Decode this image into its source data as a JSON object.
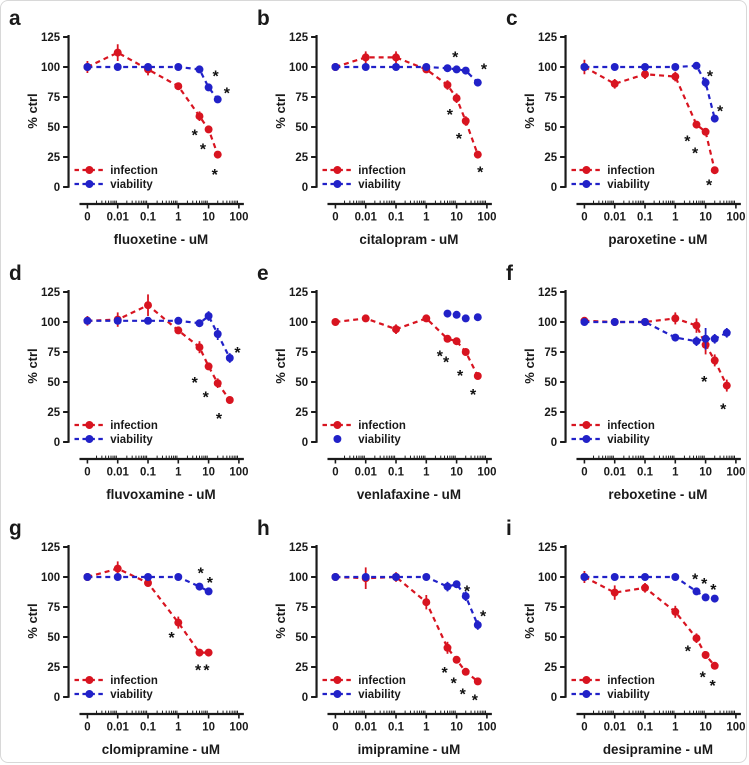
{
  "figure": {
    "type": "dose-response-grid",
    "rows": 3,
    "cols": 3,
    "ylabel": "% ctrl",
    "legend_labels": [
      "infection",
      "viability"
    ]
  },
  "style": {
    "red": "#d81420",
    "blue": "#2121c8",
    "axis": "#1a1a1a",
    "text": "#1a1a1a",
    "sig": "#111111",
    "background": "#ffffff",
    "border": "#d8d8d8"
  },
  "chart_data": [
    {
      "panel_letter": "a",
      "type": "line",
      "xlabel": "fluoxetine - uM",
      "ylabel": "% ctrl",
      "x": [
        0,
        0.01,
        0.1,
        1,
        5,
        10,
        20
      ],
      "xticklabels": [
        "0",
        "0.01",
        "0.1",
        "1",
        "10",
        "100"
      ],
      "yticks": [
        0,
        25,
        50,
        75,
        100,
        125
      ],
      "ylim": [
        0,
        125
      ],
      "xscale": "log",
      "series": [
        {
          "name": "infection",
          "color_key": "red",
          "dashed": true,
          "values": [
            100,
            112,
            98,
            84,
            59,
            48,
            27
          ],
          "err": [
            5,
            7,
            5,
            3,
            4,
            3,
            3
          ]
        },
        {
          "name": "viability",
          "color_key": "blue",
          "dashed": true,
          "values": [
            100,
            100,
            100,
            100,
            98,
            83,
            73
          ],
          "err": [
            0,
            0,
            0,
            0,
            2,
            3,
            3
          ]
        }
      ],
      "sig": {
        "infection": [
          [
            3.5,
            46
          ],
          [
            6.5,
            34
          ],
          [
            16,
            13
          ]
        ],
        "viability": [
          [
            17,
            95
          ],
          [
            40,
            81
          ]
        ]
      }
    },
    {
      "panel_letter": "b",
      "type": "line",
      "xlabel": "citalopram - uM",
      "ylabel": "% ctrl",
      "x": [
        0,
        0.01,
        0.1,
        1,
        5,
        10,
        20,
        50
      ],
      "xticklabels": [
        "0",
        "0.01",
        "0.1",
        "1",
        "10",
        "100"
      ],
      "yticks": [
        0,
        25,
        50,
        75,
        100,
        125
      ],
      "ylim": [
        0,
        125
      ],
      "xscale": "log",
      "series": [
        {
          "name": "infection",
          "color_key": "red",
          "dashed": true,
          "values": [
            100,
            108,
            108,
            98,
            85,
            74,
            55,
            27
          ],
          "err": [
            3,
            5,
            5,
            3,
            4,
            4,
            4,
            3
          ]
        },
        {
          "name": "viability",
          "color_key": "blue",
          "dashed": true,
          "values": [
            100,
            100,
            100,
            100,
            99,
            98,
            97,
            87
          ],
          "err": [
            0,
            0,
            0,
            0,
            0,
            2,
            2,
            3
          ]
        }
      ],
      "sig": {
        "infection": [
          [
            6,
            63
          ],
          [
            12,
            43
          ],
          [
            60,
            15
          ]
        ],
        "viability": [
          [
            9,
            111
          ],
          [
            80,
            101
          ]
        ]
      }
    },
    {
      "panel_letter": "c",
      "type": "line",
      "xlabel": "paroxetine - uM",
      "ylabel": "% ctrl",
      "x": [
        0,
        0.01,
        0.1,
        1,
        5,
        10,
        20
      ],
      "xticklabels": [
        "0",
        "0.01",
        "0.1",
        "1",
        "10",
        "100"
      ],
      "yticks": [
        0,
        25,
        50,
        75,
        100,
        125
      ],
      "ylim": [
        0,
        125
      ],
      "xscale": "log",
      "series": [
        {
          "name": "infection",
          "color_key": "red",
          "dashed": true,
          "values": [
            100,
            86,
            94,
            92,
            52,
            46,
            14
          ],
          "err": [
            6,
            4,
            4,
            4,
            3,
            3,
            3
          ]
        },
        {
          "name": "viability",
          "color_key": "blue",
          "dashed": true,
          "values": [
            100,
            100,
            100,
            100,
            101,
            87,
            57
          ],
          "err": [
            2,
            0,
            0,
            0,
            3,
            4,
            3
          ]
        }
      ],
      "sig": {
        "infection": [
          [
            2.5,
            41
          ],
          [
            4.5,
            31
          ],
          [
            13,
            4
          ]
        ],
        "viability": [
          [
            14,
            95
          ],
          [
            30,
            66
          ]
        ]
      }
    },
    {
      "panel_letter": "d",
      "type": "line",
      "xlabel": "fluvoxamine - uM",
      "ylabel": "% ctrl",
      "x": [
        0,
        0.01,
        0.1,
        1,
        5,
        10,
        20,
        50
      ],
      "xticklabels": [
        "0",
        "0.01",
        "0.1",
        "1",
        "10",
        "100"
      ],
      "yticks": [
        0,
        25,
        50,
        75,
        100,
        125
      ],
      "ylim": [
        0,
        125
      ],
      "xscale": "log",
      "series": [
        {
          "name": "infection",
          "color_key": "red",
          "dashed": true,
          "values": [
            101,
            102,
            114,
            93,
            79,
            63,
            49,
            35
          ],
          "err": [
            4,
            6,
            9,
            3,
            5,
            3,
            4,
            3
          ]
        },
        {
          "name": "viability",
          "color_key": "blue",
          "dashed": true,
          "values": [
            101,
            101,
            101,
            101,
            99,
            105,
            90,
            70
          ],
          "err": [
            0,
            0,
            0,
            0,
            3,
            4,
            5,
            4
          ]
        }
      ],
      "sig": {
        "infection": [
          [
            3.5,
            52
          ],
          [
            8,
            40
          ],
          [
            22,
            22
          ]
        ],
        "viability": [
          [
            90,
            77
          ]
        ]
      }
    },
    {
      "panel_letter": "e",
      "type": "line",
      "xlabel": "venlafaxine - uM",
      "ylabel": "% ctrl",
      "x": [
        0,
        0.01,
        0.1,
        1,
        5,
        10,
        20,
        50
      ],
      "xticklabels": [
        "0",
        "0.01",
        "0.1",
        "1",
        "10",
        "100"
      ],
      "yticks": [
        0,
        25,
        50,
        75,
        100,
        125
      ],
      "ylim": [
        0,
        125
      ],
      "xscale": "log",
      "series": [
        {
          "name": "infection",
          "color_key": "red",
          "dashed": true,
          "values": [
            100,
            103,
            94,
            103,
            86,
            84,
            75,
            55
          ],
          "err": [
            2,
            3,
            4,
            3,
            3,
            3,
            3,
            3
          ]
        },
        {
          "name": "viability",
          "color_key": "blue",
          "dashed": false,
          "line": false,
          "legend_line": false,
          "values": [
            null,
            null,
            null,
            null,
            107,
            106,
            103,
            104
          ],
          "err": [
            0,
            0,
            0,
            0,
            2,
            2,
            2,
            2
          ]
        }
      ],
      "sig": {
        "infection": [
          [
            2.8,
            74
          ],
          [
            4.5,
            69
          ],
          [
            13,
            58
          ],
          [
            35,
            42
          ]
        ],
        "viability": []
      }
    },
    {
      "panel_letter": "f",
      "type": "line",
      "xlabel": "reboxetine - uM",
      "ylabel": "% ctrl",
      "x": [
        0,
        0.01,
        0.1,
        1,
        5,
        10,
        20,
        50
      ],
      "xticklabels": [
        "0",
        "0.01",
        "0.1",
        "1",
        "10",
        "100"
      ],
      "yticks": [
        0,
        25,
        50,
        75,
        100,
        125
      ],
      "ylim": [
        0,
        125
      ],
      "xscale": "log",
      "series": [
        {
          "name": "infection",
          "color_key": "red",
          "dashed": true,
          "values": [
            101,
            100,
            100,
            103,
            97,
            81,
            68,
            47
          ],
          "err": [
            3,
            2,
            3,
            5,
            6,
            8,
            5,
            5
          ]
        },
        {
          "name": "viability",
          "color_key": "blue",
          "dashed": true,
          "values": [
            100,
            100,
            100,
            87,
            84,
            86,
            86,
            91
          ],
          "err": [
            2,
            0,
            2,
            3,
            4,
            9,
            4,
            4
          ]
        }
      ],
      "sig": {
        "infection": [
          [
            9,
            53
          ],
          [
            38,
            30
          ]
        ],
        "viability": []
      }
    },
    {
      "panel_letter": "g",
      "type": "line",
      "xlabel": "clomipramine - uM",
      "ylabel": "% ctrl",
      "x": [
        0,
        0.01,
        0.1,
        1,
        5,
        10
      ],
      "xticklabels": [
        "0",
        "0.01",
        "0.1",
        "1",
        "10",
        "100"
      ],
      "yticks": [
        0,
        25,
        50,
        75,
        100,
        125
      ],
      "ylim": [
        0,
        125
      ],
      "xscale": "log",
      "series": [
        {
          "name": "infection",
          "color_key": "red",
          "dashed": true,
          "values": [
            100,
            107,
            95,
            62,
            37,
            37
          ],
          "err": [
            2,
            6,
            3,
            5,
            2,
            2
          ]
        },
        {
          "name": "viability",
          "color_key": "blue",
          "dashed": true,
          "values": [
            100,
            100,
            100,
            100,
            92,
            88
          ],
          "err": [
            0,
            0,
            0,
            0,
            3,
            3
          ]
        }
      ],
      "sig": {
        "infection": [
          [
            0.6,
            52
          ],
          [
            4.5,
            25
          ],
          [
            8.5,
            25
          ]
        ],
        "viability": [
          [
            5.5,
            106
          ],
          [
            11,
            98
          ]
        ]
      }
    },
    {
      "panel_letter": "h",
      "type": "line",
      "xlabel": "imipramine - uM",
      "ylabel": "% ctrl",
      "x": [
        0,
        0.01,
        0.1,
        1,
        5,
        10,
        20,
        50
      ],
      "xticklabels": [
        "0",
        "0.01",
        "0.1",
        "1",
        "10",
        "100"
      ],
      "yticks": [
        0,
        25,
        50,
        75,
        100,
        125
      ],
      "ylim": [
        0,
        125
      ],
      "xscale": "log",
      "series": [
        {
          "name": "infection",
          "color_key": "red",
          "dashed": true,
          "values": [
            100,
            99,
            100,
            79,
            41,
            31,
            21,
            13
          ],
          "err": [
            3,
            9,
            4,
            6,
            5,
            3,
            3,
            3
          ]
        },
        {
          "name": "viability",
          "color_key": "blue",
          "dashed": true,
          "values": [
            100,
            100,
            100,
            100,
            92,
            94,
            84,
            60
          ],
          "err": [
            0,
            0,
            0,
            0,
            4,
            3,
            4,
            4
          ]
        }
      ],
      "sig": {
        "infection": [
          [
            4,
            23
          ],
          [
            8,
            14
          ],
          [
            16,
            5
          ],
          [
            40,
            0
          ]
        ],
        "viability": [
          [
            22,
            91
          ],
          [
            75,
            70
          ]
        ]
      }
    },
    {
      "panel_letter": "i",
      "type": "line",
      "xlabel": "desipramine - uM",
      "ylabel": "% ctrl",
      "x": [
        0,
        0.01,
        0.1,
        1,
        5,
        10,
        20
      ],
      "xticklabels": [
        "0",
        "0.01",
        "0.1",
        "1",
        "10",
        "100"
      ],
      "yticks": [
        0,
        25,
        50,
        75,
        100,
        125
      ],
      "ylim": [
        0,
        125
      ],
      "xscale": "log",
      "series": [
        {
          "name": "infection",
          "color_key": "red",
          "dashed": true,
          "values": [
            100,
            87,
            91,
            71,
            49,
            35,
            26
          ],
          "err": [
            5,
            6,
            4,
            5,
            4,
            3,
            3
          ]
        },
        {
          "name": "viability",
          "color_key": "blue",
          "dashed": true,
          "values": [
            100,
            100,
            100,
            100,
            88,
            83,
            82
          ],
          "err": [
            0,
            0,
            0,
            0,
            3,
            3,
            3
          ]
        }
      ],
      "sig": {
        "infection": [
          [
            2.6,
            41
          ],
          [
            8,
            19
          ],
          [
            17,
            12
          ]
        ],
        "viability": [
          [
            4.5,
            101
          ],
          [
            9,
            97
          ],
          [
            18,
            92
          ]
        ]
      }
    }
  ]
}
